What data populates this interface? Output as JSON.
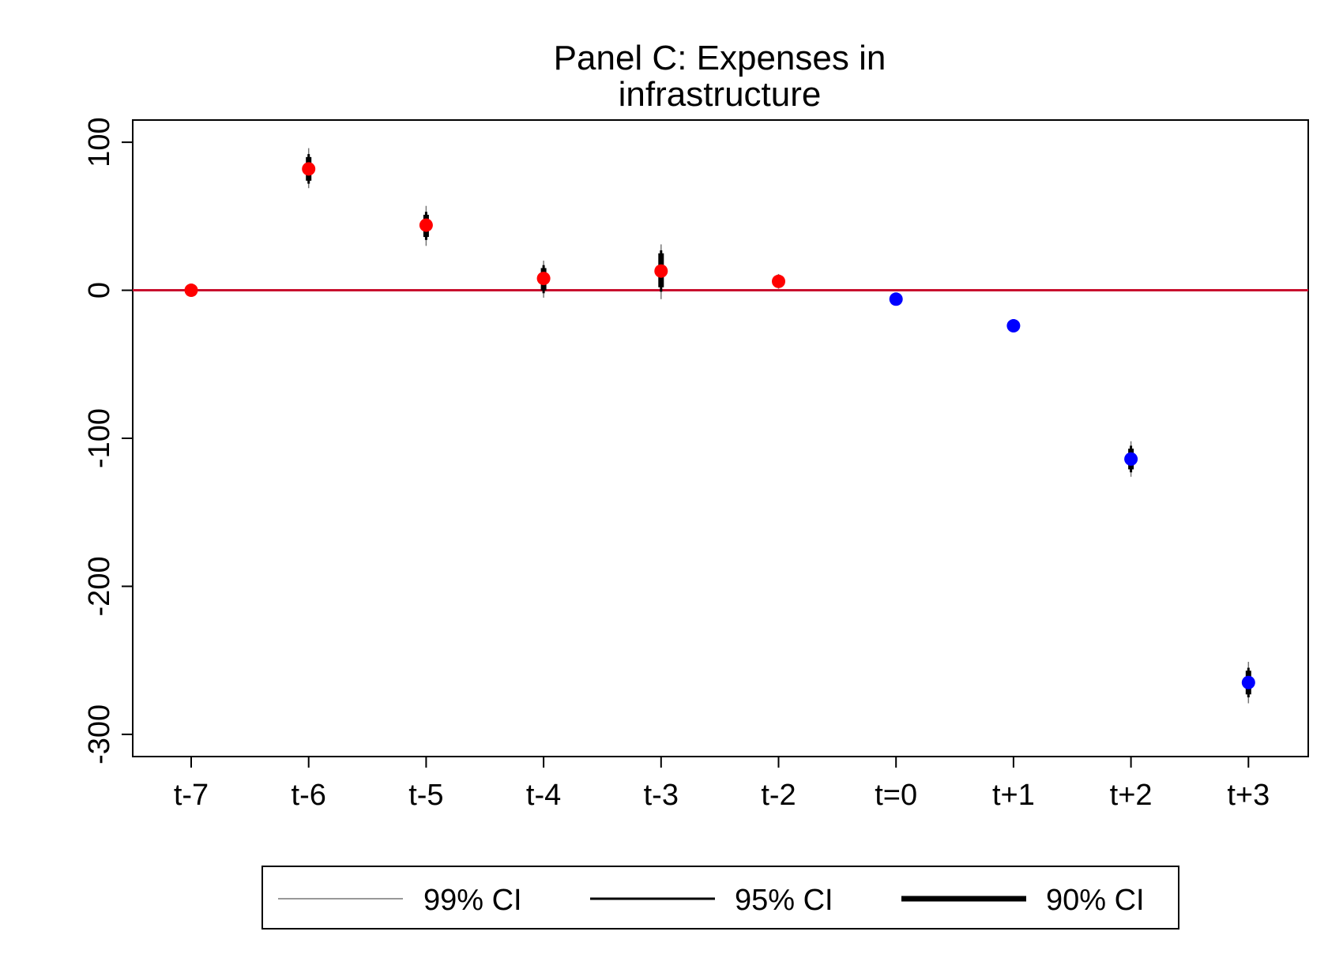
{
  "chart_data": {
    "type": "scatter",
    "title": [
      "Panel C: Expenses in",
      "infrastructure"
    ],
    "xlabel": "",
    "ylabel": "",
    "categories": [
      "t-7",
      "t-6",
      "t-5",
      "t-4",
      "t-3",
      "t-2",
      "t=0",
      "t+1",
      "t+2",
      "t+3"
    ],
    "ylim": [
      -315,
      115
    ],
    "yticks": [
      100,
      0,
      -100,
      -200,
      -300
    ],
    "ytick_labels": [
      "100",
      "0",
      "-100",
      "-200",
      "-300"
    ],
    "reference_line": {
      "y": 0,
      "color": "#c8102e"
    },
    "grid": false,
    "points": [
      {
        "x": "t-7",
        "y": 0,
        "color": "#ff0000",
        "ci90": [
          0,
          0
        ],
        "ci95": [
          0,
          0
        ],
        "ci99": [
          0,
          0
        ]
      },
      {
        "x": "t-6",
        "y": 82,
        "color": "#ff0000",
        "ci90": [
          74,
          90
        ],
        "ci95": [
          72,
          92
        ],
        "ci99": [
          69,
          96
        ]
      },
      {
        "x": "t-5",
        "y": 44,
        "color": "#ff0000",
        "ci90": [
          36,
          51
        ],
        "ci95": [
          34,
          53
        ],
        "ci99": [
          30,
          57
        ]
      },
      {
        "x": "t-4",
        "y": 8,
        "color": "#ff0000",
        "ci90": [
          0,
          15
        ],
        "ci95": [
          -2,
          17
        ],
        "ci99": [
          -5,
          20
        ]
      },
      {
        "x": "t-3",
        "y": 13,
        "color": "#ff0000",
        "ci90": [
          2,
          25
        ],
        "ci95": [
          -1,
          27
        ],
        "ci99": [
          -6,
          31
        ]
      },
      {
        "x": "t-2",
        "y": 6,
        "color": "#ff0000",
        "ci90": [
          3,
          9
        ],
        "ci95": [
          2,
          10
        ],
        "ci99": [
          1,
          11
        ]
      },
      {
        "x": "t=0",
        "y": -6,
        "color": "#0000ff",
        "ci90": [
          -6,
          -6
        ],
        "ci95": [
          -6,
          -6
        ],
        "ci99": [
          -6,
          -6
        ]
      },
      {
        "x": "t+1",
        "y": -24,
        "color": "#0000ff",
        "ci90": [
          -24,
          -24
        ],
        "ci95": [
          -24,
          -24
        ],
        "ci99": [
          -24,
          -24
        ]
      },
      {
        "x": "t+2",
        "y": -114,
        "color": "#0000ff",
        "ci90": [
          -121,
          -107
        ],
        "ci95": [
          -123,
          -105
        ],
        "ci99": [
          -126,
          -102
        ]
      },
      {
        "x": "t+3",
        "y": -265,
        "color": "#0000ff",
        "ci90": [
          -273,
          -257
        ],
        "ci95": [
          -275,
          -255
        ],
        "ci99": [
          -279,
          -251
        ]
      }
    ],
    "legend": {
      "position": "bottom",
      "entries": [
        {
          "label": "99% CI",
          "style": "thin-gray"
        },
        {
          "label": "95% CI",
          "style": "medium-black"
        },
        {
          "label": "90% CI",
          "style": "thick-black"
        }
      ]
    }
  }
}
